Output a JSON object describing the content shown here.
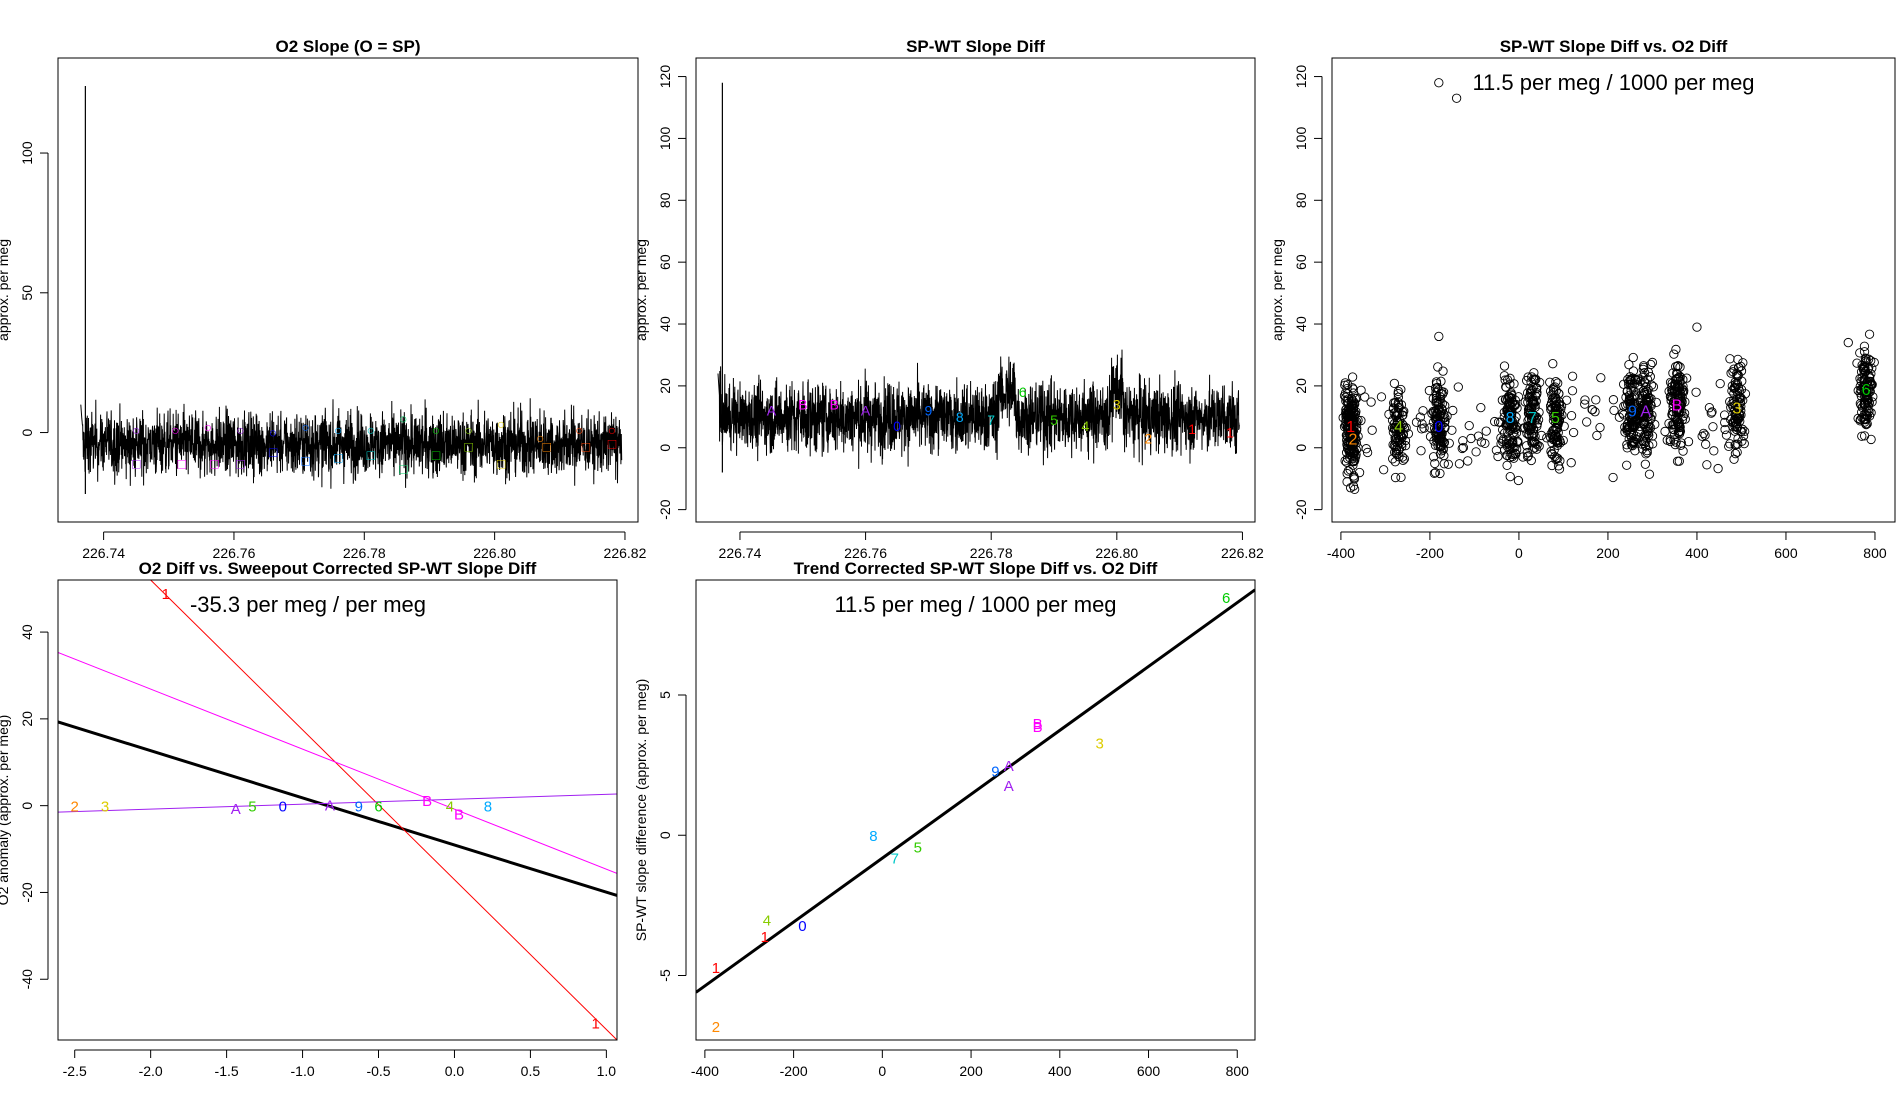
{
  "chart_data": [
    {
      "id": "p1",
      "type": "line",
      "title": "O2 Slope (O = SP)",
      "xlabel": "",
      "ylabel": "approx. per meg",
      "xlim": [
        226.733,
        226.822
      ],
      "ylim": [
        -32,
        134
      ],
      "xticks": [
        226.74,
        226.76,
        226.78,
        226.8,
        226.82
      ],
      "xtick_labels": [
        "226.74",
        "226.76",
        "226.78",
        "226.80",
        "226.82"
      ],
      "yticks": [
        0,
        50,
        100
      ],
      "ytick_labels": [
        "0",
        "50",
        "100"
      ],
      "noise": {
        "x0": 226.7365,
        "x1": 226.8195,
        "spike_value": 124,
        "spike_x": 226.7372,
        "base": -4,
        "amplitude": 9
      },
      "markers": [
        {
          "x": 226.745,
          "y": -11,
          "symbol": "□",
          "color": "#a020f0"
        },
        {
          "x": 226.752,
          "y": -11,
          "symbol": "□",
          "color": "#ff00ff"
        },
        {
          "x": 226.757,
          "y": -11,
          "symbol": "□",
          "color": "#ff00ff"
        },
        {
          "x": 226.761,
          "y": -11,
          "symbol": "□",
          "color": "#a020f0"
        },
        {
          "x": 226.766,
          "y": -7,
          "symbol": "□",
          "color": "#0000ff"
        },
        {
          "x": 226.771,
          "y": -10,
          "symbol": "□",
          "color": "#0066ff"
        },
        {
          "x": 226.776,
          "y": -9,
          "symbol": "□",
          "color": "#00aaff"
        },
        {
          "x": 226.781,
          "y": -8,
          "symbol": "□",
          "color": "#00c8c8"
        },
        {
          "x": 226.786,
          "y": -13,
          "symbol": "□",
          "color": "#00cc66"
        },
        {
          "x": 226.791,
          "y": -8,
          "symbol": "□",
          "color": "#00cc00"
        },
        {
          "x": 226.796,
          "y": -5,
          "symbol": "□",
          "color": "#88cc00"
        },
        {
          "x": 226.801,
          "y": -11,
          "symbol": "□",
          "color": "#ddcc00"
        },
        {
          "x": 226.808,
          "y": -5,
          "symbol": "□",
          "color": "#ff8800"
        },
        {
          "x": 226.814,
          "y": -5,
          "symbol": "□",
          "color": "#ff4400"
        },
        {
          "x": 226.818,
          "y": -4,
          "symbol": "□",
          "color": "#ff0000"
        },
        {
          "x": 226.745,
          "y": 1,
          "symbol": "○",
          "color": "#a020f0"
        },
        {
          "x": 226.751,
          "y": 1,
          "symbol": "○",
          "color": "#ff00ff"
        },
        {
          "x": 226.756,
          "y": 2,
          "symbol": "○",
          "color": "#ff00ff"
        },
        {
          "x": 226.761,
          "y": 1,
          "symbol": "○",
          "color": "#a020f0"
        },
        {
          "x": 226.766,
          "y": 0,
          "symbol": "○",
          "color": "#0000ff"
        },
        {
          "x": 226.771,
          "y": 2,
          "symbol": "○",
          "color": "#0066ff"
        },
        {
          "x": 226.776,
          "y": 1,
          "symbol": "○",
          "color": "#00aaff"
        },
        {
          "x": 226.781,
          "y": 1,
          "symbol": "○",
          "color": "#00c8c8"
        },
        {
          "x": 226.786,
          "y": 5,
          "symbol": "○",
          "color": "#00cc66"
        },
        {
          "x": 226.791,
          "y": 1,
          "symbol": "○",
          "color": "#00cc00"
        },
        {
          "x": 226.796,
          "y": 1,
          "symbol": "○",
          "color": "#88cc00"
        },
        {
          "x": 226.801,
          "y": 3,
          "symbol": "○",
          "color": "#ddcc00"
        },
        {
          "x": 226.807,
          "y": -2,
          "symbol": "○",
          "color": "#ff8800"
        },
        {
          "x": 226.813,
          "y": 1,
          "symbol": "○",
          "color": "#ff4400"
        },
        {
          "x": 226.818,
          "y": 1,
          "symbol": "○",
          "color": "#ff0000"
        }
      ]
    },
    {
      "id": "p2",
      "type": "line",
      "title": "SP-WT Slope Diff",
      "xlabel": "",
      "ylabel": "approx. per meg",
      "xlim": [
        226.733,
        226.822
      ],
      "ylim": [
        -24,
        126
      ],
      "xticks": [
        226.74,
        226.76,
        226.78,
        226.8,
        226.82
      ],
      "xtick_labels": [
        "226.74",
        "226.76",
        "226.78",
        "226.80",
        "226.82"
      ],
      "yticks": [
        -20,
        0,
        20,
        40,
        60,
        80,
        100,
        120
      ],
      "ytick_labels": [
        "-20",
        "0",
        "20",
        "40",
        "60",
        "80",
        "100",
        "120"
      ],
      "noise": {
        "x0": 226.7365,
        "x1": 226.8195,
        "spike_value": 118,
        "spike_x": 226.7372,
        "base": 10,
        "amplitude": 9
      },
      "markers": [
        {
          "x": 226.745,
          "y": 12,
          "symbol": "A",
          "color": "#a020f0"
        },
        {
          "x": 226.75,
          "y": 14,
          "symbol": "B",
          "color": "#ff00ff"
        },
        {
          "x": 226.755,
          "y": 14,
          "symbol": "B",
          "color": "#ff00ff"
        },
        {
          "x": 226.76,
          "y": 12,
          "symbol": "A",
          "color": "#a020f0"
        },
        {
          "x": 226.765,
          "y": 7,
          "symbol": "0",
          "color": "#0000ff"
        },
        {
          "x": 226.77,
          "y": 12,
          "symbol": "9",
          "color": "#0066ff"
        },
        {
          "x": 226.775,
          "y": 10,
          "symbol": "8",
          "color": "#00aaff"
        },
        {
          "x": 226.78,
          "y": 9,
          "symbol": "7",
          "color": "#00c8c8"
        },
        {
          "x": 226.785,
          "y": 18,
          "symbol": "6",
          "color": "#00cc00"
        },
        {
          "x": 226.79,
          "y": 9,
          "symbol": "5",
          "color": "#33cc00"
        },
        {
          "x": 226.795,
          "y": 7,
          "symbol": "4",
          "color": "#88cc00"
        },
        {
          "x": 226.8,
          "y": 14,
          "symbol": "3",
          "color": "#ddcc00"
        },
        {
          "x": 226.805,
          "y": 3,
          "symbol": "2",
          "color": "#ff8800"
        },
        {
          "x": 226.812,
          "y": 6,
          "symbol": "1",
          "color": "#ff0000"
        },
        {
          "x": 226.818,
          "y": 5,
          "symbol": "1",
          "color": "#ff0000"
        }
      ]
    },
    {
      "id": "p3",
      "type": "scatter",
      "title": "SP-WT Slope Diff vs. O2 Diff",
      "annotation": "11.5 per meg / 1000 per meg",
      "xlabel": "",
      "ylabel": "approx. per meg",
      "xlim": [
        -420,
        845
      ],
      "ylim": [
        -24,
        126
      ],
      "xticks": [
        -400,
        -200,
        0,
        200,
        400,
        600,
        800
      ],
      "xtick_labels": [
        "-400",
        "-200",
        "0",
        "200",
        "400",
        "600",
        "800"
      ],
      "yticks": [
        -20,
        0,
        20,
        40,
        60,
        80,
        100,
        120
      ],
      "ytick_labels": [
        "-20",
        "0",
        "20",
        "40",
        "60",
        "80",
        "100",
        "120"
      ],
      "clusters": [
        {
          "x": -378,
          "spread": 8,
          "n": 150,
          "label": "1",
          "color": "#ff0000",
          "ly": 7
        },
        {
          "x": -373,
          "spread": 6,
          "n": 40,
          "label": "2",
          "color": "#ff8800",
          "ly": 3
        },
        {
          "x": -270,
          "spread": 7,
          "n": 80,
          "label": "4",
          "color": "#88cc00",
          "ly": 7
        },
        {
          "x": -180,
          "spread": 9,
          "n": 110,
          "label": "0",
          "color": "#0000ff",
          "ly": 7
        },
        {
          "x": -20,
          "spread": 9,
          "n": 110,
          "label": "8",
          "color": "#00aaff",
          "ly": 10
        },
        {
          "x": 30,
          "spread": 8,
          "n": 100,
          "label": "7",
          "color": "#00c8c8",
          "ly": 10
        },
        {
          "x": 82,
          "spread": 8,
          "n": 100,
          "label": "5",
          "color": "#33cc00",
          "ly": 10
        },
        {
          "x": 255,
          "spread": 8,
          "n": 110,
          "label": "9",
          "color": "#0066ff",
          "ly": 12
        },
        {
          "x": 285,
          "spread": 8,
          "n": 110,
          "label": "A",
          "color": "#a020f0",
          "ly": 12
        },
        {
          "x": 355,
          "spread": 9,
          "n": 130,
          "label": "B",
          "color": "#ff00ff",
          "ly": 14
        },
        {
          "x": 490,
          "spread": 8,
          "n": 90,
          "label": "3",
          "color": "#ddcc00",
          "ly": 13
        },
        {
          "x": 780,
          "spread": 9,
          "n": 120,
          "label": "6",
          "color": "#00cc00",
          "ly": 19
        }
      ],
      "outliers": [
        {
          "x": -180,
          "y": 118
        },
        {
          "x": -140,
          "y": 113
        },
        {
          "x": -180,
          "y": 36
        },
        {
          "x": 400,
          "y": 39
        },
        {
          "x": 740,
          "y": 34
        }
      ]
    },
    {
      "id": "p4",
      "type": "scatter",
      "title": "O2 Diff vs. Sweepout Corrected SP-WT Slope Diff",
      "annotation": "-35.3 per meg / per meg",
      "xlabel": "",
      "ylabel": "O2 anomaly (approx. per meg)",
      "xlim": [
        -2.61,
        1.07
      ],
      "ylim": [
        -54,
        52
      ],
      "xticks": [
        -2.5,
        -2.0,
        -1.5,
        -1.0,
        -0.5,
        0.0,
        0.5,
        1.0
      ],
      "xtick_labels": [
        "-2.5",
        "-2.0",
        "-1.5",
        "-1.0",
        "-0.5",
        "0.0",
        "0.5",
        "1.0"
      ],
      "yticks": [
        -40,
        -20,
        0,
        20,
        40
      ],
      "ytick_labels": [
        "-40",
        "-20",
        "0",
        "20",
        "40"
      ],
      "points": [
        {
          "x": -1.9,
          "y": 49,
          "label": "1",
          "color": "#ff0000"
        },
        {
          "x": 0.93,
          "y": -50,
          "label": "1",
          "color": "#ff0000"
        },
        {
          "x": -2.5,
          "y": 0,
          "label": "2",
          "color": "#ff8800"
        },
        {
          "x": -2.3,
          "y": 0,
          "label": "3",
          "color": "#ddcc00"
        },
        {
          "x": -1.44,
          "y": -0.5,
          "label": "A",
          "color": "#a020f0"
        },
        {
          "x": -1.33,
          "y": 0,
          "label": "5",
          "color": "#33cc00"
        },
        {
          "x": -1.13,
          "y": 0,
          "label": "0",
          "color": "#0000ff"
        },
        {
          "x": -0.82,
          "y": 0.3,
          "label": "A",
          "color": "#a020f0"
        },
        {
          "x": -0.63,
          "y": 0,
          "label": "9",
          "color": "#0066ff"
        },
        {
          "x": -0.5,
          "y": 0,
          "label": "6",
          "color": "#00cc00"
        },
        {
          "x": -0.18,
          "y": 1.3,
          "label": "B",
          "color": "#ff00ff"
        },
        {
          "x": -0.03,
          "y": 0,
          "label": "4",
          "color": "#88cc00"
        },
        {
          "x": 0.03,
          "y": -1.8,
          "label": "B",
          "color": "#ff00ff"
        },
        {
          "x": 0.22,
          "y": 0,
          "label": "8",
          "color": "#00aaff"
        }
      ],
      "lines": [
        {
          "name": "fit",
          "x0": -2.61,
          "y0": 19.3,
          "x1": 1.07,
          "y1": -20.7,
          "color": "#000000",
          "width": 3
        },
        {
          "name": "red",
          "x0": -2.0,
          "y0": 52,
          "x1": 1.07,
          "y1": -54,
          "color": "#ff0000",
          "width": 1
        },
        {
          "name": "magenta",
          "x0": -2.61,
          "y0": 35.3,
          "x1": 1.07,
          "y1": -15.6,
          "color": "#ff00ff",
          "width": 1
        },
        {
          "name": "purple",
          "x0": -2.61,
          "y0": -1.5,
          "x1": 1.07,
          "y1": 2.7,
          "color": "#a020f0",
          "width": 1
        }
      ]
    },
    {
      "id": "p5",
      "type": "scatter",
      "title": "Trend Corrected SP-WT Slope Diff vs. O2 Diff",
      "annotation": "11.5 per meg / 1000 per meg",
      "xlabel": "",
      "ylabel": "SP-WT slope difference (approx. per meg)",
      "xlim": [
        -420,
        840
      ],
      "ylim": [
        -7.3,
        9.1
      ],
      "xticks": [
        -400,
        -200,
        0,
        200,
        400,
        600,
        800
      ],
      "xtick_labels": [
        "-400",
        "-200",
        "0",
        "200",
        "400",
        "600",
        "800"
      ],
      "yticks": [
        -5,
        0,
        5
      ],
      "ytick_labels": [
        "-5",
        "0",
        "5"
      ],
      "points": [
        {
          "x": -375,
          "y": -4.7,
          "label": "1",
          "color": "#ff0000"
        },
        {
          "x": -375,
          "y": -6.8,
          "label": "2",
          "color": "#ff8800"
        },
        {
          "x": -265,
          "y": -3.6,
          "label": "1",
          "color": "#ff0000"
        },
        {
          "x": -260,
          "y": -3.0,
          "label": "4",
          "color": "#88cc00"
        },
        {
          "x": -180,
          "y": -3.2,
          "label": "0",
          "color": "#0000ff"
        },
        {
          "x": -20,
          "y": 0.0,
          "label": "8",
          "color": "#00aaff"
        },
        {
          "x": 28,
          "y": -0.8,
          "label": "7",
          "color": "#00c8c8"
        },
        {
          "x": 80,
          "y": -0.4,
          "label": "5",
          "color": "#33cc00"
        },
        {
          "x": 255,
          "y": 2.3,
          "label": "9",
          "color": "#0066ff"
        },
        {
          "x": 285,
          "y": 2.5,
          "label": "A",
          "color": "#a020f0"
        },
        {
          "x": 285,
          "y": 1.8,
          "label": "A",
          "color": "#a020f0"
        },
        {
          "x": 350,
          "y": 4.0,
          "label": "B",
          "color": "#ff00ff"
        },
        {
          "x": 350,
          "y": 3.9,
          "label": "B",
          "color": "#ff00ff"
        },
        {
          "x": 490,
          "y": 3.3,
          "label": "3",
          "color": "#ddcc00"
        },
        {
          "x": 775,
          "y": 8.5,
          "label": "6",
          "color": "#00cc00"
        }
      ],
      "lines": [
        {
          "name": "fit",
          "x0": -420,
          "y0": -5.6,
          "x1": 840,
          "y1": 8.75,
          "color": "#000000",
          "width": 3
        }
      ]
    }
  ]
}
